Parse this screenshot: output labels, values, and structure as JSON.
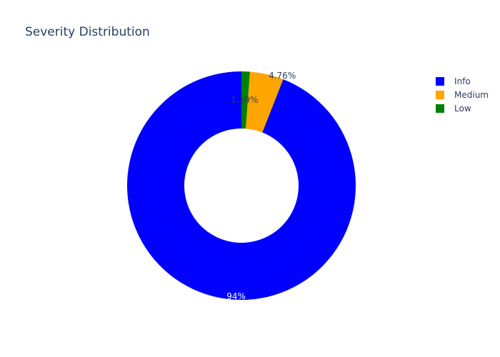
{
  "chart_data": {
    "type": "pie",
    "title": "Severity Distribution",
    "hole": 0.5,
    "direction": "counterclockwise",
    "start_angle_deg": 90,
    "legend_position": "top-right",
    "slices": [
      {
        "label": "Info",
        "value": 94,
        "display": "94%",
        "color": "#0000ff",
        "label_color": "#ffffff"
      },
      {
        "label": "Medium",
        "value": 4.76,
        "display": "4.76%",
        "color": "#ffa500",
        "label_color": "#2a3f5f"
      },
      {
        "label": "Low",
        "value": 1.19,
        "display": "1.19%",
        "color": "#008000",
        "label_color": "#2a3f5f"
      }
    ]
  }
}
